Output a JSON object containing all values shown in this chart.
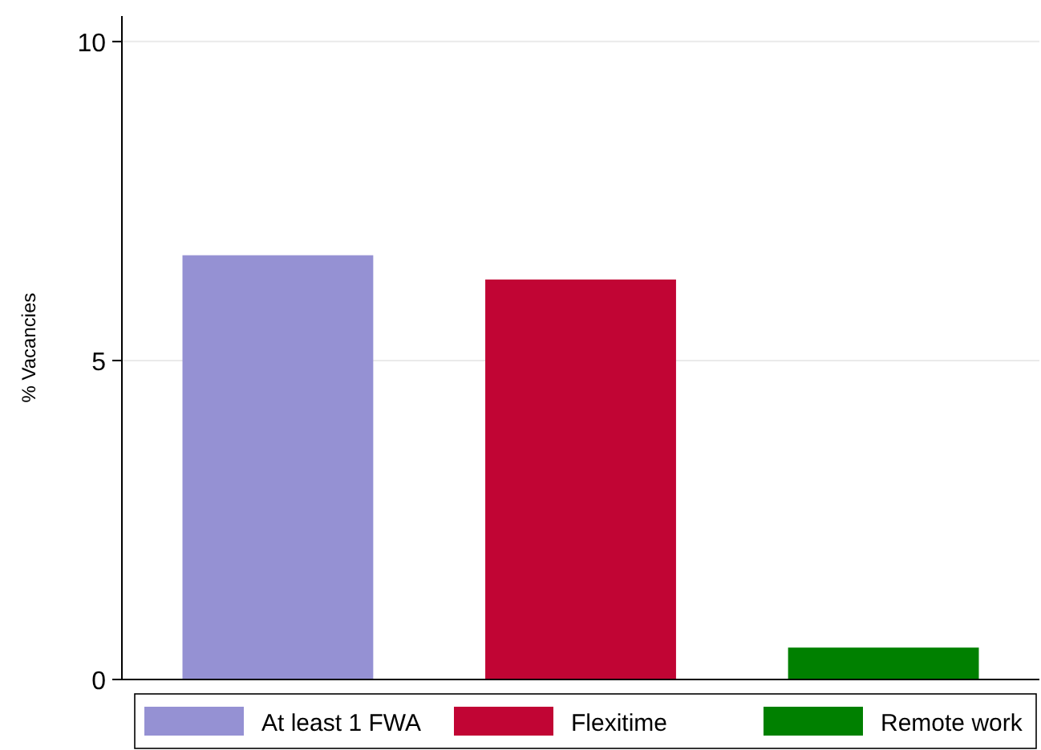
{
  "chart_data": {
    "type": "bar",
    "ylabel": "% Vacancies",
    "categories": [
      null,
      null,
      null
    ],
    "stacked": true,
    "series": [
      {
        "name": "At least 1 FWA",
        "color": "#9591d3",
        "values": [
          6.65,
          null,
          null
        ]
      },
      {
        "name": "Flexitime",
        "color": "#c10534",
        "values": [
          null,
          6.27,
          null
        ]
      },
      {
        "name": "Remote work",
        "color": "#008000",
        "values": [
          null,
          null,
          0.5
        ]
      }
    ],
    "ylim": [
      0,
      10.4
    ],
    "yticks": [
      0,
      5,
      10
    ],
    "grid": "y",
    "legend": "bottom",
    "tick_labels": "y"
  }
}
